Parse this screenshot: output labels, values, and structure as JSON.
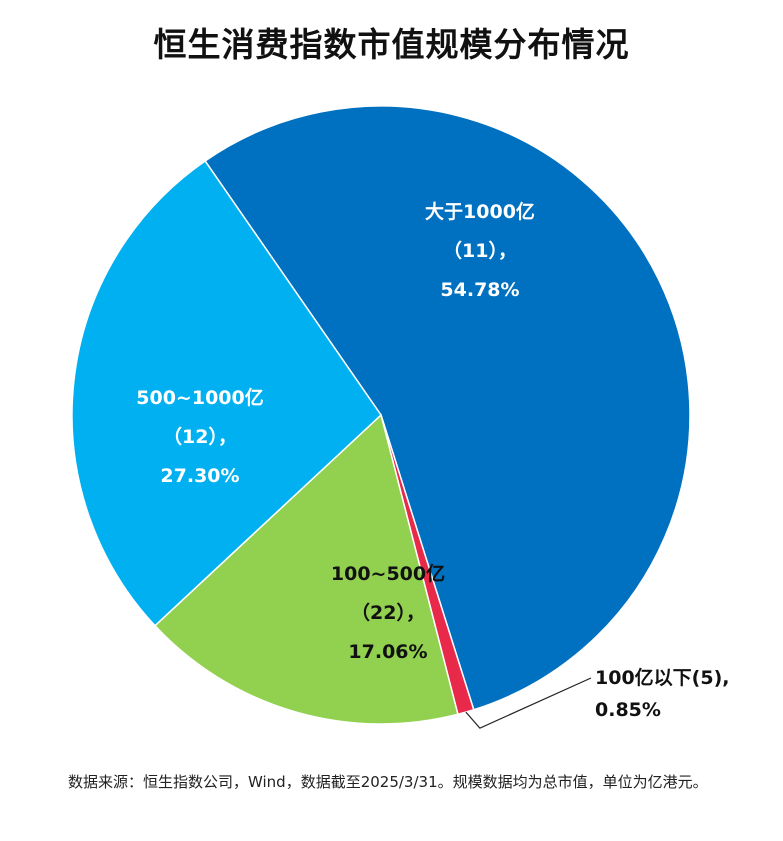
{
  "chart_data": {
    "type": "pie",
    "title": "恒生消费指数市值规模分布情况",
    "slices": [
      {
        "label": "大于1000亿",
        "count": "（11），",
        "value": 54.78,
        "value_text": "54.78%",
        "color": "#0070C0",
        "text_color": "#ffffff"
      },
      {
        "label": "100亿以下(5),",
        "count": "",
        "value": 0.85,
        "value_text": "0.85%",
        "color": "#E8294A",
        "text_color": "#111111"
      },
      {
        "label": "100~500亿",
        "count": "（22），",
        "value": 17.06,
        "value_text": "17.06%",
        "color": "#92D050",
        "text_color": "#111111"
      },
      {
        "label": "500~1000亿",
        "count": "（12），",
        "value": 27.3,
        "value_text": "27.30%",
        "color": "#00B0F0",
        "text_color": "#ffffff"
      }
    ]
  },
  "footnote": "数据来源：恒生指数公司，Wind，数据截至2025/3/31。规模数据均为总市值，单位为亿港元。"
}
